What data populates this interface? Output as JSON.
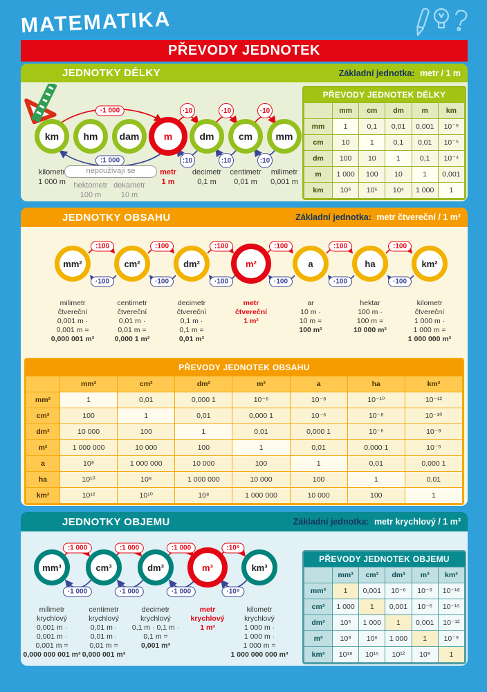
{
  "brand": {
    "title": "MATEMATIKA"
  },
  "banner": {
    "title": "PŘEVODY JEDNOTEK"
  },
  "header_icons": [
    "pencil-icon",
    "lightbulb-icon",
    "question-mark-icon"
  ],
  "colors": {
    "page_bg": "#2FA0DA",
    "banner_red": "#E30613",
    "length_green": "#A5C614",
    "area_orange": "#F59D00",
    "volume_teal": "#088A91",
    "navy": "#16355F",
    "ring_green": "#94C01F",
    "ring_yellow": "#F2B200",
    "ring_teal": "#00837B",
    "pill_blue": "#3B4697"
  },
  "sections": {
    "length": {
      "heading": "JEDNOTKY DÉLKY",
      "base_unit_label": "Základní jednotka:",
      "base_unit_value": "metr / 1 m",
      "diagram": {
        "units": [
          "km",
          "hm",
          "dam",
          "m",
          "dm",
          "cm",
          "mm"
        ],
        "highlight_unit": "m",
        "big_multiply": "·1 000",
        "big_divide": ":1 000",
        "small_multiply": "·10",
        "small_divide": ":10",
        "note": "nepoužívají se",
        "labels": [
          {
            "name": "kilometr",
            "value": "1 000 m"
          },
          {
            "name": "hektometr",
            "value": "100 m"
          },
          {
            "name": "dekametr",
            "value": "10 m"
          },
          {
            "name": "metr",
            "value": "1 m"
          },
          {
            "name": "decimetr",
            "value": "0,1 m"
          },
          {
            "name": "centimetr",
            "value": "0,01 m"
          },
          {
            "name": "milimetr",
            "value": "0,001 m"
          }
        ]
      },
      "table": {
        "title": "PŘEVODY JEDNOTEK DÉLKY",
        "columns": [
          "mm",
          "cm",
          "dm",
          "m",
          "km"
        ],
        "rows": [
          {
            "header": "mm",
            "cells": [
              "1",
              "0,1",
              "0,01",
              "0,001",
              "10⁻⁶"
            ]
          },
          {
            "header": "cm",
            "cells": [
              "10",
              "1",
              "0,1",
              "0,01",
              "10⁻⁵"
            ]
          },
          {
            "header": "dm",
            "cells": [
              "100",
              "10",
              "1",
              "0,1",
              "10⁻⁴"
            ]
          },
          {
            "header": "m",
            "cells": [
              "1 000",
              "100",
              "10",
              "1",
              "0,001"
            ]
          },
          {
            "header": "km",
            "cells": [
              "10⁶",
              "10⁵",
              "10⁴",
              "1 000",
              "1"
            ]
          }
        ]
      }
    },
    "area": {
      "heading": "JEDNOTKY OBSAHU",
      "base_unit_label": "Základní jednotka:",
      "base_unit_value": "metr čtvereční / 1 m²",
      "diagram": {
        "units": [
          "mm²",
          "cm²",
          "dm²",
          "m²",
          "a",
          "ha",
          "km²"
        ],
        "highlight_unit": "m²",
        "divide_label": ":100",
        "multiply_label": "·100",
        "columns": [
          {
            "lines": [
              "milimetr",
              "čtvereční",
              "0,001 m ·",
              "0,001 m ="
            ],
            "result": "0,000 001 m²"
          },
          {
            "lines": [
              "centimetr",
              "čtvereční",
              "0,01 m ·",
              "0,01 m ="
            ],
            "result": "0,000 1 m²"
          },
          {
            "lines": [
              "decimetr",
              "čtvereční",
              "0,1 m ·",
              "0,1 m ="
            ],
            "result": "0,01 m²"
          },
          {
            "lines": [
              "metr",
              "čtvereční"
            ],
            "result": "1 m²"
          },
          {
            "lines": [
              "ar",
              "10 m ·",
              "10 m ="
            ],
            "result": "100 m²"
          },
          {
            "lines": [
              "hektar",
              "100 m ·",
              "100 m ="
            ],
            "result": "10 000 m²"
          },
          {
            "lines": [
              "kilometr",
              "čtvereční",
              "1 000 m ·",
              "1 000 m ="
            ],
            "result": "1 000 000 m²"
          }
        ]
      },
      "table": {
        "title": "PŘEVODY JEDNOTEK OBSAHU",
        "columns": [
          "mm²",
          "cm²",
          "dm²",
          "m²",
          "a",
          "ha",
          "km²"
        ],
        "rows": [
          {
            "header": "mm²",
            "cells": [
              "1",
              "0,01",
              "0,000 1",
              "10⁻⁶",
              "10⁻⁸",
              "10⁻¹⁰",
              "10⁻¹²"
            ]
          },
          {
            "header": "cm²",
            "cells": [
              "100",
              "1",
              "0,01",
              "0,000 1",
              "10⁻⁶",
              "10⁻⁸",
              "10⁻¹⁰"
            ]
          },
          {
            "header": "dm²",
            "cells": [
              "10 000",
              "100",
              "1",
              "0,01",
              "0,000 1",
              "10⁻⁶",
              "10⁻⁸"
            ]
          },
          {
            "header": "m²",
            "cells": [
              "1 000 000",
              "10 000",
              "100",
              "1",
              "0,01",
              "0,000 1",
              "10⁻⁶"
            ]
          },
          {
            "header": "a",
            "cells": [
              "10⁸",
              "1 000 000",
              "10 000",
              "100",
              "1",
              "0,01",
              "0,000 1"
            ]
          },
          {
            "header": "ha",
            "cells": [
              "10¹⁰",
              "10⁸",
              "1 000 000",
              "10 000",
              "100",
              "1",
              "0,01"
            ]
          },
          {
            "header": "km²",
            "cells": [
              "10¹²",
              "10¹⁰",
              "10⁸",
              "1 000 000",
              "10 000",
              "100",
              "1"
            ]
          }
        ]
      }
    },
    "volume": {
      "heading": "JEDNOTKY OBJEMU",
      "base_unit_label": "Základní jednotka:",
      "base_unit_value": "metr krychlový / 1 m³",
      "diagram": {
        "units": [
          "mm³",
          "cm³",
          "dm³",
          "m³",
          "km³"
        ],
        "highlight_unit": "m³",
        "divide_labels": [
          ":1 000",
          ":1 000",
          ":1 000",
          ":10⁹"
        ],
        "multiply_labels": [
          "·1 000",
          "·1 000",
          "·1 000",
          "·10⁹"
        ],
        "columns": [
          {
            "lines": [
              "milimetr",
              "krychlový",
              "0,001 m ·",
              "0,001 m ·",
              "0,001 m ="
            ],
            "result": "0,000 000 001 m³"
          },
          {
            "lines": [
              "centimetr",
              "krychlový",
              "0,01 m ·",
              "0,01 m ·",
              "0,01 m ="
            ],
            "result": "0,000 001 m³"
          },
          {
            "lines": [
              "decimetr",
              "krychlový",
              "0,1 m · 0,1 m ·",
              "0,1 m ="
            ],
            "result": "0,001 m³"
          },
          {
            "lines": [
              "metr",
              "krychlový"
            ],
            "result": "1 m³"
          },
          {
            "lines": [
              "kilometr",
              "krychlový",
              "1 000 m ·",
              "1 000 m ·",
              "1 000 m ="
            ],
            "result": "1 000 000 000 m³"
          }
        ]
      },
      "table": {
        "title": "PŘEVODY JEDNOTEK OBJEMU",
        "columns": [
          "mm³",
          "cm³",
          "dm³",
          "m³",
          "km³"
        ],
        "rows": [
          {
            "header": "mm³",
            "cells": [
              "1",
              "0,001",
              "10⁻⁶",
              "10⁻⁹",
              "10⁻¹⁸"
            ]
          },
          {
            "header": "cm³",
            "cells": [
              "1 000",
              "1",
              "0,001",
              "10⁻⁶",
              "10⁻¹⁵"
            ]
          },
          {
            "header": "dm³",
            "cells": [
              "10⁶",
              "1 000",
              "1",
              "0,001",
              "10⁻¹²"
            ]
          },
          {
            "header": "m³",
            "cells": [
              "10⁹",
              "10⁶",
              "1 000",
              "1",
              "10⁻⁹"
            ]
          },
          {
            "header": "km³",
            "cells": [
              "10¹⁸",
              "10¹⁵",
              "10¹²",
              "10⁹",
              "1"
            ]
          }
        ]
      }
    }
  }
}
